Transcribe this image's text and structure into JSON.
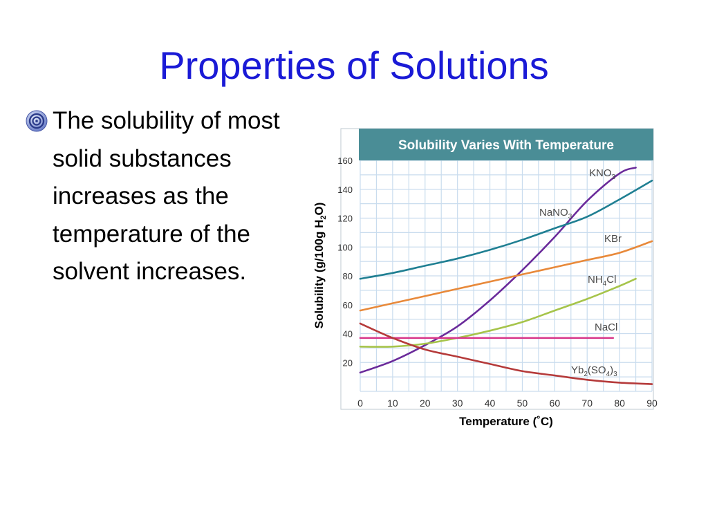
{
  "slide": {
    "title": "Properties of Solutions",
    "bullet_icon": "swirl-bullet-icon",
    "bullet_text": "The solubility of most solid substances increases as the temperature of the solvent increases."
  },
  "chart_data": {
    "type": "line",
    "title": "Solubility Varies With Temperature",
    "xlabel": "Temperature (˚C)",
    "ylabel_parts": [
      "Solubility (g/100g H",
      "2",
      "O)"
    ],
    "xlim": [
      0,
      90
    ],
    "ylim": [
      0,
      160
    ],
    "xticks": [
      0,
      10,
      20,
      30,
      40,
      50,
      60,
      70,
      80,
      90
    ],
    "yticks": [
      20,
      40,
      60,
      80,
      100,
      120,
      140,
      160
    ],
    "grid": true,
    "colors": {
      "header": "#4a8d96",
      "grid": "#c9dcee",
      "KNO3": "#6a2a9a",
      "NaNO3": "#1f7f92",
      "KBr": "#e8893a",
      "NH4Cl": "#a6c44a",
      "NaCl": "#d83a8c",
      "Yb2SO43": "#b53a3a"
    },
    "series": [
      {
        "id": "KNO3",
        "name_parts": [
          "KNO",
          "3",
          ""
        ],
        "x": [
          0,
          10,
          20,
          30,
          40,
          50,
          60,
          70,
          80,
          85
        ],
        "y": [
          13,
          21,
          32,
          45,
          63,
          84,
          107,
          132,
          151,
          155
        ]
      },
      {
        "id": "NaNO3",
        "name_parts": [
          "NaNO",
          "3",
          ""
        ],
        "x": [
          0,
          10,
          20,
          30,
          40,
          50,
          60,
          70,
          80,
          90
        ],
        "y": [
          78,
          82,
          87,
          92,
          98,
          105,
          113,
          121,
          133,
          146
        ]
      },
      {
        "id": "KBr",
        "name_parts": [
          "KBr",
          "",
          ""
        ],
        "x": [
          0,
          10,
          20,
          30,
          40,
          50,
          60,
          70,
          80,
          90
        ],
        "y": [
          56,
          61,
          66,
          71,
          76,
          81,
          86,
          91,
          96,
          104
        ]
      },
      {
        "id": "NH4Cl",
        "name_parts": [
          "NH",
          "4",
          "Cl"
        ],
        "x": [
          0,
          10,
          20,
          30,
          40,
          50,
          60,
          70,
          80,
          85
        ],
        "y": [
          31,
          31,
          33,
          37,
          42,
          48,
          56,
          64,
          73,
          78
        ]
      },
      {
        "id": "NaCl",
        "name_parts": [
          "NaCl",
          "",
          ""
        ],
        "x": [
          0,
          10,
          20,
          30,
          40,
          50,
          60,
          70,
          78
        ],
        "y": [
          37,
          37,
          37,
          37,
          37,
          37,
          37,
          37,
          37
        ]
      },
      {
        "id": "Yb2SO43",
        "name_parts": [
          "Yb",
          "2",
          "(SO",
          "4",
          ")",
          "3"
        ],
        "x": [
          0,
          10,
          20,
          30,
          40,
          50,
          60,
          70,
          80,
          90
        ],
        "y": [
          47,
          37,
          29,
          24,
          19,
          14,
          11,
          8,
          6,
          5
        ]
      }
    ]
  }
}
